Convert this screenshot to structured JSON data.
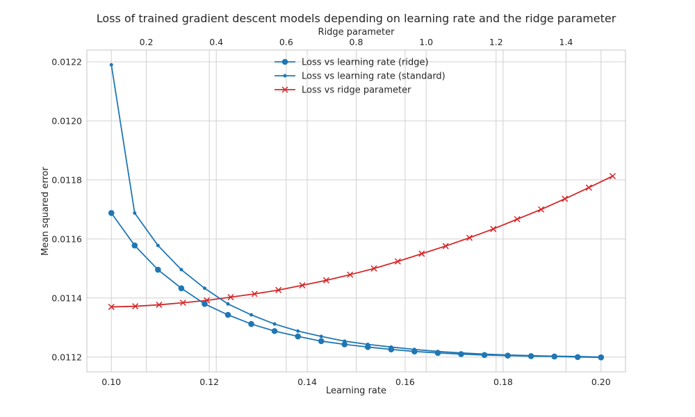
{
  "chart_data": {
    "type": "line",
    "title": "Loss of trained gradient descent models depending on learning rate and the ridge parameter",
    "xlabel": "Learning rate",
    "x2label": "Ridge parameter",
    "ylabel": "Mean squared error",
    "xlim": [
      0.095,
      0.205
    ],
    "x2lim": [
      0.03,
      1.57
    ],
    "ylim": [
      0.01115,
      0.01224
    ],
    "x_ticks": [
      0.1,
      0.12,
      0.14,
      0.16,
      0.18,
      0.2
    ],
    "x_tick_labels": [
      "0.10",
      "0.12",
      "0.14",
      "0.16",
      "0.18",
      "0.20"
    ],
    "x2_ticks": [
      0.2,
      0.4,
      0.6,
      0.8,
      1.0,
      1.2,
      1.4
    ],
    "x2_tick_labels": [
      "0.2",
      "0.4",
      "0.6",
      "0.8",
      "1.0",
      "1.2",
      "1.4"
    ],
    "y_ticks": [
      0.0112,
      0.0114,
      0.0116,
      0.0118,
      0.012,
      0.0122
    ],
    "y_tick_labels": [
      "0.0112",
      "0.0114",
      "0.0116",
      "0.0118",
      "0.0120",
      "0.0122"
    ],
    "grid": true,
    "legend_position": "top-center",
    "series": [
      {
        "name": "Loss vs learning rate (ridge)",
        "axis": "bottom",
        "color": "#1f77b4",
        "marker": "circle-large",
        "x": [
          0.1,
          0.10476,
          0.10952,
          0.11429,
          0.11905,
          0.12381,
          0.12857,
          0.13333,
          0.1381,
          0.14286,
          0.14762,
          0.15238,
          0.15714,
          0.1619,
          0.16667,
          0.17143,
          0.17619,
          0.18095,
          0.18571,
          0.19048,
          0.19524,
          0.2
        ],
        "values": [
          0.011688,
          0.011578,
          0.011496,
          0.011433,
          0.01138,
          0.011343,
          0.011312,
          0.011288,
          0.01127,
          0.011254,
          0.011243,
          0.011234,
          0.011226,
          0.011219,
          0.011214,
          0.01121,
          0.011207,
          0.011205,
          0.011203,
          0.011202,
          0.0112,
          0.011199
        ]
      },
      {
        "name": "Loss vs learning rate (standard)",
        "axis": "bottom",
        "color": "#1f77b4",
        "marker": "circle-small",
        "x": [
          0.1,
          0.10476,
          0.10952,
          0.11429,
          0.11905,
          0.12381,
          0.12857,
          0.13333,
          0.1381,
          0.14286,
          0.14762,
          0.15238,
          0.15714,
          0.1619,
          0.16667,
          0.17143,
          0.17619,
          0.18095,
          0.18571,
          0.19048,
          0.19524,
          0.2
        ],
        "values": [
          0.01219,
          0.011688,
          0.011578,
          0.011496,
          0.011433,
          0.01138,
          0.011343,
          0.011312,
          0.011288,
          0.01127,
          0.011254,
          0.011243,
          0.011234,
          0.011226,
          0.011219,
          0.011214,
          0.01121,
          0.011207,
          0.011205,
          0.011203,
          0.011202,
          0.0112
        ]
      },
      {
        "name": "Loss vs ridge parameter",
        "axis": "top",
        "color": "#d62728",
        "marker": "x",
        "x": [
          0.1,
          0.1683,
          0.2365,
          0.3048,
          0.373,
          0.4413,
          0.5095,
          0.5778,
          0.646,
          0.7143,
          0.7825,
          0.8508,
          0.919,
          0.9873,
          1.0556,
          1.1238,
          1.1921,
          1.2603,
          1.3286,
          1.3968,
          1.4651,
          1.5333
        ],
        "values": [
          0.01137,
          0.011372,
          0.011377,
          0.011384,
          0.011392,
          0.011403,
          0.011414,
          0.011427,
          0.011443,
          0.01146,
          0.011479,
          0.0115,
          0.011524,
          0.01155,
          0.011576,
          0.011604,
          0.011634,
          0.011667,
          0.0117,
          0.011736,
          0.011774,
          0.011813
        ]
      }
    ]
  }
}
